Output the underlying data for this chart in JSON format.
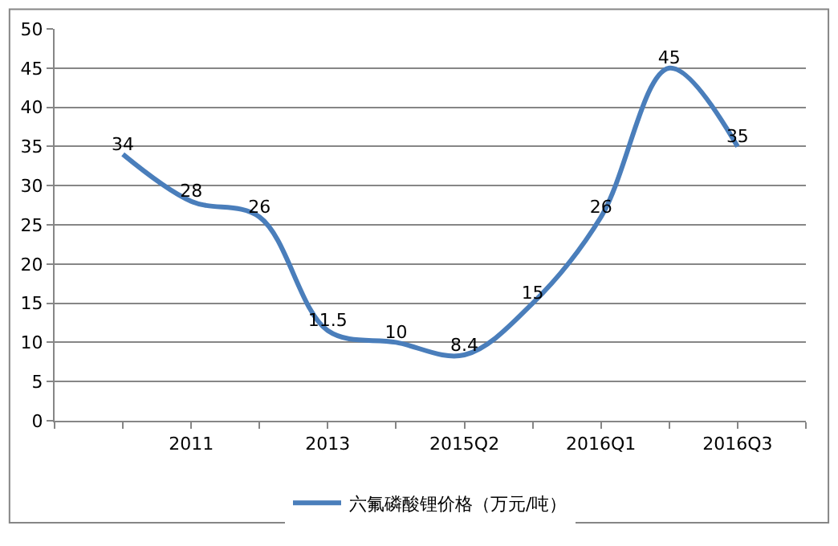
{
  "chart_data": {
    "type": "line",
    "categories": [
      null,
      "2011",
      null,
      "2013",
      null,
      "2015Q2",
      null,
      "2016Q1",
      null,
      "2016Q3"
    ],
    "series": [
      {
        "name": "六氟磷酸锂价格（万元/吨）",
        "color": "#4a7ebb",
        "values": [
          34,
          28,
          26,
          11.5,
          10,
          8.4,
          15,
          26,
          45,
          35
        ]
      }
    ],
    "ylim": [
      0,
      50
    ],
    "yticks": [
      0,
      5,
      10,
      15,
      20,
      25,
      30,
      35,
      40,
      45,
      50
    ],
    "grid": "y",
    "legend": "bottom",
    "data_labels": true,
    "marker": "none",
    "line_style": "solid"
  }
}
